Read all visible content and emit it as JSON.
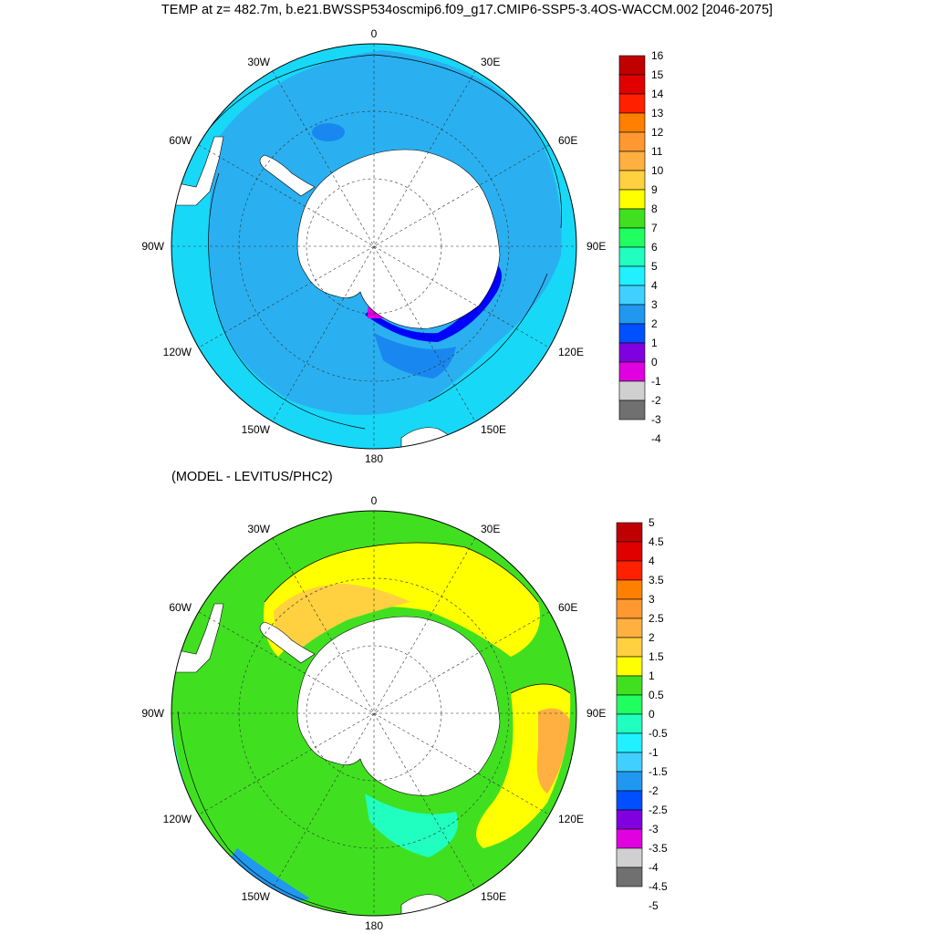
{
  "title": "TEMP at z= 482.7m, b.e21.BWSSP534oscmip6.f09_g17.CMIP6-SSP5-3.4OS-WACCM.002 [2046-2075]",
  "subtitle": "(MODEL - LEVITUS/PHC2)",
  "maps": [
    {
      "longitude_labels": {
        "top": "0",
        "bottom": "180",
        "left": "90W",
        "right": "90E",
        "upper_left": "30W",
        "upper_right": "30E",
        "mid_left": "60W",
        "mid_right": "60E",
        "lower_left": "120W",
        "lower_right": "120E",
        "bottom_left": "150W",
        "bottom_right": "150E"
      },
      "colorbar": {
        "labels": [
          "16",
          "15",
          "14",
          "13",
          "12",
          "11",
          "10",
          "9",
          "8",
          "7",
          "6",
          "5",
          "4",
          "3",
          "2",
          "1",
          "0",
          "-1",
          "-2",
          "-3",
          "-4"
        ],
        "colors": [
          "#c00000",
          "#e00000",
          "#ff2000",
          "#ff8000",
          "#ff9830",
          "#ffb040",
          "#ffd040",
          "#ffff00",
          "#40e020",
          "#20ff60",
          "#20ffc0",
          "#20f0ff",
          "#40d0ff",
          "#2098f0",
          "#0050ff",
          "#8000e0",
          "#e000e0",
          "#d0d0d0",
          "#707070"
        ]
      },
      "colors": {
        "ocean_main": "#2ab0f0",
        "ocean_warm": "#18d8f8",
        "ocean_cold": "#1888f0",
        "land": "#ffffff",
        "shelf_cold": "#0000ff",
        "shelf_very_cold": "#e000e0"
      }
    },
    {
      "longitude_labels": {
        "top": "0",
        "bottom": "180",
        "left": "90W",
        "right": "90E",
        "upper_left": "30W",
        "upper_right": "30E",
        "mid_left": "60W",
        "mid_right": "60E",
        "lower_left": "120W",
        "lower_right": "120E",
        "bottom_left": "150W",
        "bottom_right": "150E"
      },
      "colorbar": {
        "labels": [
          "5",
          "4.5",
          "4",
          "3.5",
          "3",
          "2.5",
          "2",
          "1.5",
          "1",
          "0.5",
          "0",
          "-0.5",
          "-1",
          "-1.5",
          "-2",
          "-2.5",
          "-3",
          "-3.5",
          "-4",
          "-4.5",
          "-5"
        ],
        "colors": [
          "#c00000",
          "#e00000",
          "#ff2000",
          "#ff8000",
          "#ff9830",
          "#ffb040",
          "#ffd040",
          "#ffff00",
          "#40e020",
          "#20ff60",
          "#20ffc0",
          "#20f0ff",
          "#40d0ff",
          "#2098f0",
          "#0050ff",
          "#8000e0",
          "#e000e0",
          "#d0d0d0",
          "#707070"
        ]
      },
      "colors": {
        "ocean_main": "#40e020",
        "ocean_warm": "#ffff00",
        "ocean_hot": "#ffd040",
        "ocean_cool": "#20ffc0",
        "land": "#ffffff"
      }
    }
  ]
}
